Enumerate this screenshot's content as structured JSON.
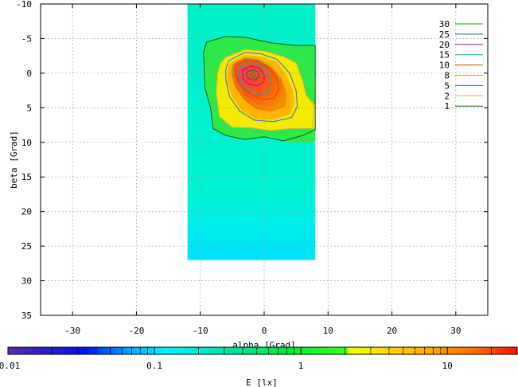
{
  "chart_data": {
    "type": "heatmap",
    "title": "",
    "xlabel": "alpha [Grad]",
    "ylabel": "beta [Grad]",
    "xlim": [
      -35,
      35
    ],
    "ylim": [
      35,
      -10
    ],
    "x_ticks": [
      -30,
      -20,
      -10,
      0,
      10,
      20,
      30
    ],
    "y_ticks": [
      -10,
      -5,
      0,
      5,
      10,
      15,
      20,
      25,
      30,
      35
    ],
    "grid": true,
    "legend_position": "top-right",
    "data_extent": {
      "alpha": [
        -12,
        8
      ],
      "beta": [
        -10,
        27
      ]
    },
    "contours": [
      {
        "level": "30",
        "color": "#00b400"
      },
      {
        "level": "25",
        "color": "#1a6e3c"
      },
      {
        "level": "20",
        "color": "#b400b4"
      },
      {
        "level": "15",
        "color": "#00b4b4"
      },
      {
        "level": "10",
        "color": "#b45a00"
      },
      {
        "level": "8",
        "color": "#b4b400"
      },
      {
        "level": "5",
        "color": "#3c64dc"
      },
      {
        "level": "2",
        "color": "#dcb43c"
      },
      {
        "level": "1",
        "color": "#006400"
      }
    ],
    "colorbar": {
      "label": "E [lx]",
      "scale": "log",
      "range": [
        0.01,
        30
      ],
      "ticks": [
        {
          "value": 0.01,
          "label": "0.01"
        },
        {
          "value": 0.1,
          "label": "0.1"
        },
        {
          "value": 1,
          "label": "1"
        },
        {
          "value": 10,
          "label": "10"
        }
      ]
    },
    "peak": {
      "alpha": -3,
      "beta": 0,
      "value": 30
    }
  }
}
